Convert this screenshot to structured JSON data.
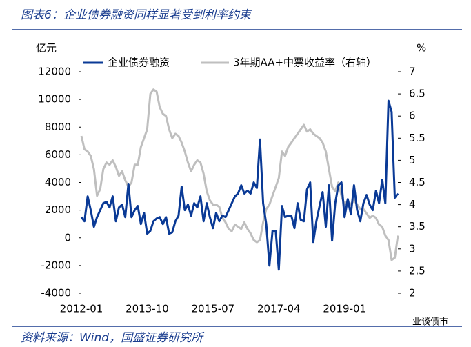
{
  "chart_data": {
    "type": "line",
    "title": "图表6：企业债券融资同样显著受到利率约束",
    "source": "资料来源：Wind，国盛证券研究所",
    "watermark": "业谈债市",
    "y_label": "亿元",
    "y2_label": "%",
    "categories": [
      "2012-01",
      null,
      null,
      null,
      null,
      null,
      null,
      null,
      null,
      null,
      null,
      null,
      null,
      null,
      null,
      null,
      null,
      null,
      null,
      null,
      null,
      "2013-10",
      null,
      null,
      null,
      null,
      null,
      null,
      null,
      null,
      null,
      null,
      null,
      null,
      null,
      null,
      null,
      null,
      null,
      null,
      null,
      null,
      "2015-07",
      null,
      null,
      null,
      null,
      null,
      null,
      null,
      null,
      null,
      null,
      null,
      null,
      null,
      null,
      null,
      null,
      null,
      null,
      null,
      null,
      "2017-04",
      null,
      null,
      null,
      null,
      null,
      null,
      null,
      null,
      null,
      null,
      null,
      null,
      null,
      null,
      null,
      null,
      null,
      null,
      null,
      null,
      "2019-01",
      null,
      null,
      null,
      null,
      null,
      null,
      null,
      null,
      null,
      null,
      null,
      null,
      null,
      null,
      null,
      null,
      null
    ],
    "series": [
      {
        "name": "企业债券融资",
        "color": "#0a3a96",
        "axis": "y",
        "values": [
          1500,
          1200,
          3000,
          2000,
          800,
          1500,
          2000,
          2500,
          2600,
          2200,
          3000,
          1200,
          2200,
          2400,
          1500,
          3900,
          1500,
          2000,
          2300,
          1000,
          1800,
          300,
          500,
          1200,
          1400,
          1500,
          1000,
          1500,
          300,
          400,
          1200,
          1600,
          3700,
          2000,
          2400,
          1600,
          2500,
          2200,
          3000,
          1200,
          2500,
          1500,
          700,
          1800,
          1200,
          1600,
          1500,
          2000,
          2500,
          3000,
          3200,
          3800,
          3200,
          3400,
          3200,
          4000,
          3600,
          7100,
          2500,
          1000,
          -2000,
          500,
          500,
          -2300,
          2300,
          1500,
          1600,
          1600,
          700,
          2500,
          1300,
          1200,
          3500,
          4000,
          -300,
          1200,
          2300,
          3300,
          800,
          3800,
          -200,
          2500,
          3800,
          4000,
          1500,
          2800,
          1700,
          3800,
          2000,
          1200,
          2500,
          3100,
          2400,
          2000,
          3400,
          2500,
          4200,
          2500,
          9900,
          9100,
          2900,
          3200
        ]
      },
      {
        "name": "3年期AA+中票收益率（右轴）",
        "color": "#bfbfbf",
        "axis": "y2",
        "values": [
          5.55,
          5.25,
          5.2,
          5.1,
          4.8,
          4.2,
          4.35,
          4.8,
          4.95,
          4.9,
          5.0,
          4.85,
          4.65,
          4.75,
          4.55,
          4.4,
          4.5,
          4.9,
          4.9,
          5.3,
          5.5,
          5.7,
          6.5,
          6.6,
          6.55,
          6.2,
          6.05,
          6.0,
          5.7,
          5.5,
          5.6,
          5.55,
          5.4,
          5.2,
          4.95,
          4.75,
          4.9,
          5.0,
          4.95,
          4.7,
          4.3,
          4.1,
          4.0,
          4.0,
          3.95,
          3.7,
          3.6,
          3.45,
          3.4,
          3.55,
          3.5,
          3.45,
          3.6,
          3.45,
          3.35,
          3.2,
          3.15,
          3.2,
          3.6,
          3.9,
          4.0,
          4.2,
          4.4,
          4.6,
          5.2,
          5.1,
          5.3,
          5.4,
          5.5,
          5.6,
          5.7,
          5.8,
          5.65,
          5.7,
          5.6,
          5.55,
          5.5,
          5.4,
          5.2,
          4.8,
          4.4,
          4.3,
          4.5,
          4.2,
          4.0,
          4.1,
          4.0,
          4.1,
          4.0,
          3.9,
          3.9,
          3.8,
          3.7,
          3.75,
          3.7,
          3.55,
          3.5,
          3.3,
          3.2,
          2.75,
          2.8,
          3.3
        ]
      }
    ],
    "ylim": [
      -4000,
      12000
    ],
    "yticks": [
      -4000,
      -2000,
      0,
      2000,
      4000,
      6000,
      8000,
      10000,
      12000
    ],
    "y2lim": [
      2,
      7
    ],
    "y2ticks": [
      2,
      2.5,
      3,
      3.5,
      4,
      4.5,
      5,
      5.5,
      6,
      6.5,
      7
    ]
  }
}
